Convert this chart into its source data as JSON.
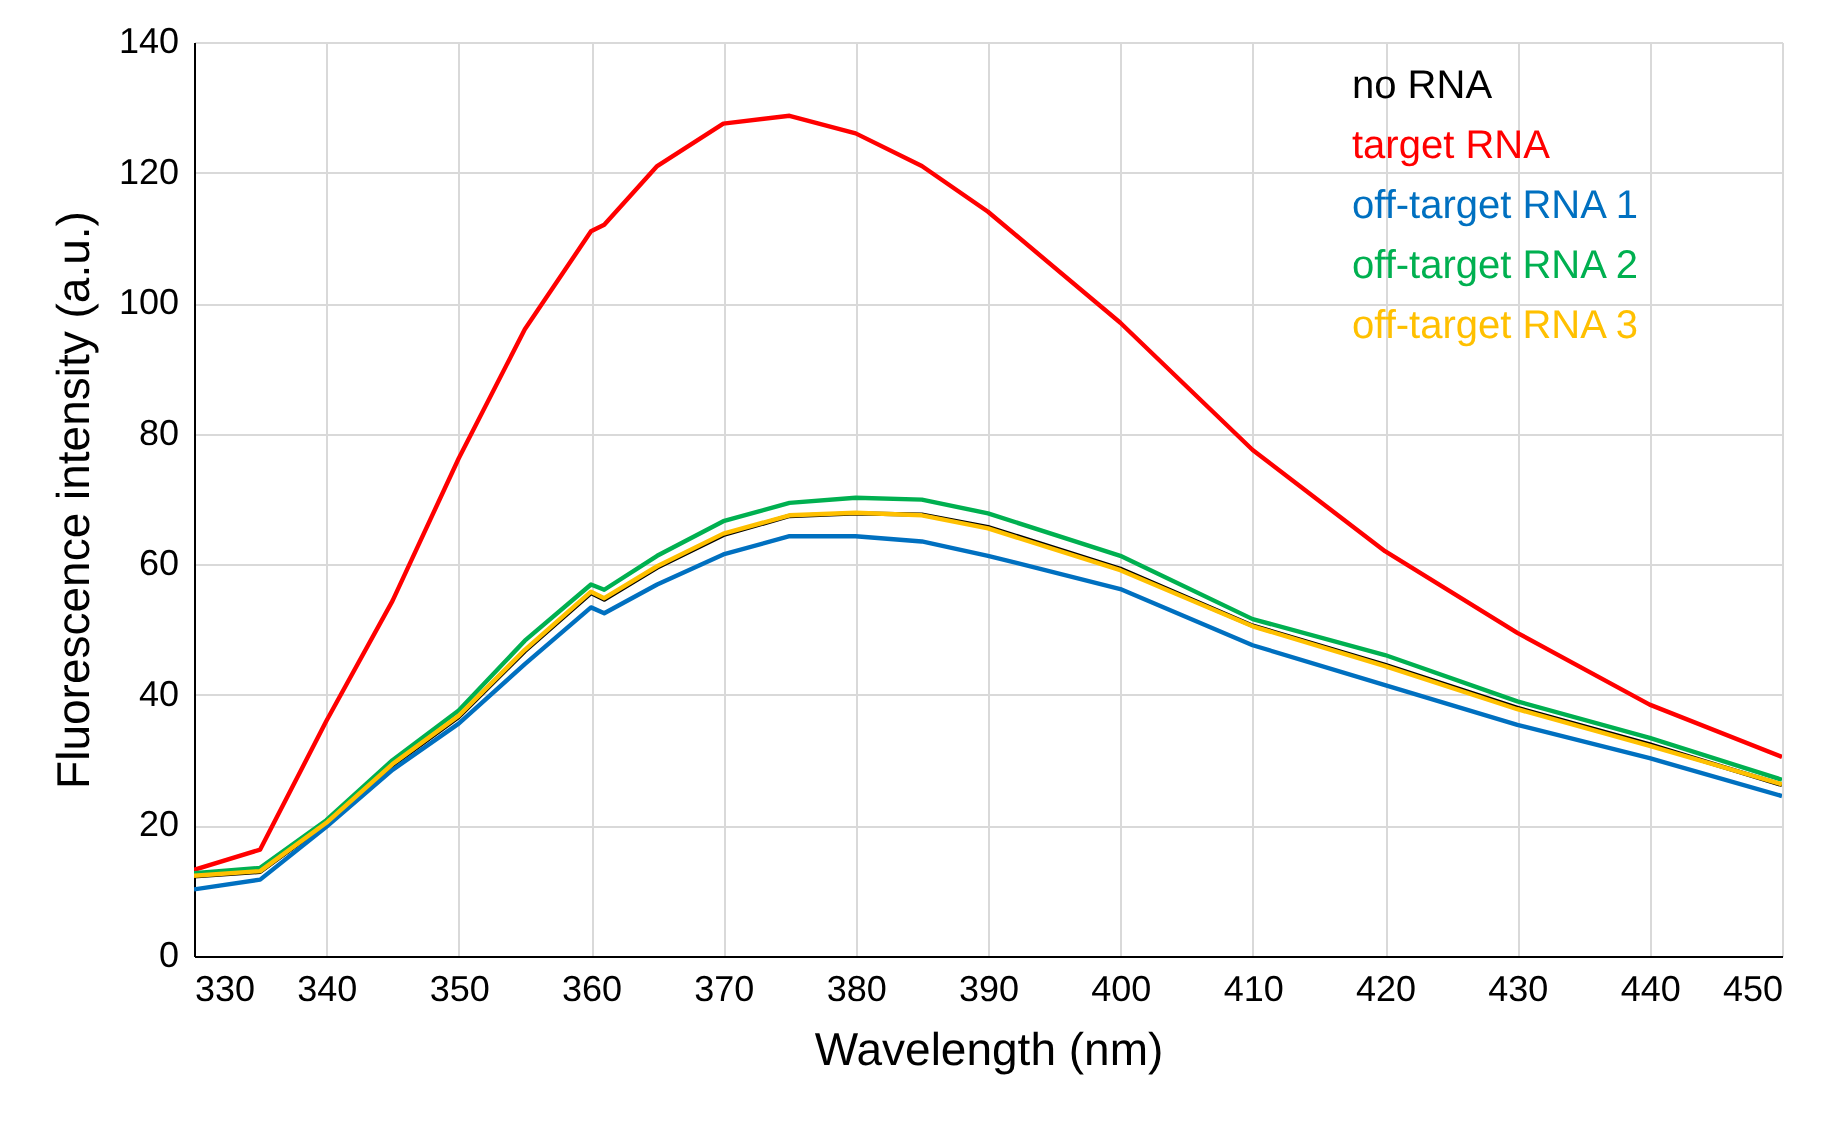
{
  "chart_data": {
    "type": "line",
    "xlabel": "Wavelength (nm)",
    "ylabel": "Fluorescence intensity (a.u.)",
    "xlim": [
      330,
      450
    ],
    "xticks": [
      330,
      340,
      350,
      360,
      370,
      380,
      390,
      400,
      410,
      420,
      430,
      440,
      450
    ],
    "ylim": [
      0,
      140
    ],
    "yticks": [
      0,
      20,
      40,
      60,
      80,
      100,
      120,
      140
    ],
    "grid": true,
    "legend": "top right",
    "marker": "none",
    "line_style": "solid",
    "x": [
      330,
      335,
      340,
      345,
      350,
      355,
      360,
      361,
      365,
      370,
      375,
      380,
      385,
      390,
      400,
      410,
      420,
      430,
      440,
      450
    ],
    "series": [
      {
        "name": "no RNA",
        "color": "#000000",
        "values": [
          12.2,
          12.9,
          20.3,
          29.2,
          36.6,
          46.7,
          55.6,
          54.6,
          59.5,
          64.5,
          67.4,
          67.8,
          67.6,
          65.7,
          59.3,
          50.6,
          44.6,
          38,
          32.4,
          26.2
        ]
      },
      {
        "name": "target RNA",
        "color": "#ff0000",
        "values": [
          13.2,
          16.3,
          36,
          54.4,
          76.2,
          96,
          111,
          112,
          121,
          127.5,
          128.7,
          126,
          121,
          114,
          97,
          77.5,
          62,
          49.5,
          38.5,
          30.5
        ]
      },
      {
        "name": "off-target  RNA 1",
        "color": "#0070c0",
        "values": [
          10.2,
          11.7,
          19.8,
          28.5,
          35.6,
          44.7,
          53.4,
          52.5,
          56.9,
          61.5,
          64.3,
          64.3,
          63.5,
          61.3,
          56.2,
          47.6,
          41.5,
          35.4,
          30.3,
          24.5
        ]
      },
      {
        "name": "off-target  RNA 2",
        "color": "#00b050",
        "values": [
          12.7,
          13.5,
          20.8,
          30,
          37.6,
          48.3,
          56.9,
          56.1,
          61.3,
          66.6,
          69.4,
          70.2,
          69.9,
          67.8,
          61.3,
          51.6,
          46.1,
          39,
          33.4,
          27
        ]
      },
      {
        "name": "off-target  RNA 3",
        "color": "#ffc000",
        "values": [
          12.3,
          13,
          20.4,
          29.4,
          36.8,
          46.9,
          55.8,
          54.8,
          59.7,
          64.7,
          67.5,
          67.9,
          67.5,
          65.5,
          59.1,
          50.5,
          44.4,
          37.8,
          32.2,
          26.3
        ]
      }
    ]
  }
}
